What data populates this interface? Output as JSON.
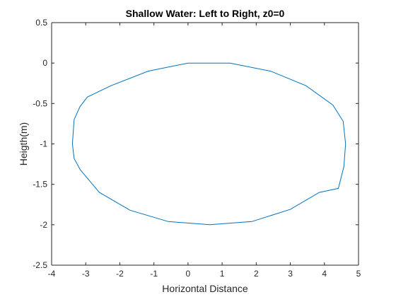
{
  "chart_data": {
    "type": "line",
    "title": "Shallow Water: Left to Right, z0=0",
    "xlabel": "Horizontal Distance",
    "ylabel": "Heigth(m)",
    "xlim": [
      -4,
      5
    ],
    "ylim": [
      -2.5,
      0.5
    ],
    "xticks": [
      -4,
      -3,
      -2,
      -1,
      0,
      1,
      2,
      3,
      4,
      5
    ],
    "xtick_labels": [
      "-4",
      "-3",
      "-2",
      "-1",
      "0",
      "1",
      "2",
      "3",
      "4",
      "5"
    ],
    "yticks": [
      -2.5,
      -2,
      -1.5,
      -1,
      -0.5,
      0,
      0.5
    ],
    "ytick_labels": [
      "-2.5",
      "-2",
      "-1.5",
      "-1",
      "-0.5",
      "0",
      "0.5"
    ],
    "grid": false,
    "series": [
      {
        "color": "#0072BD",
        "x": [
          0.0,
          1.23,
          2.42,
          3.46,
          4.25,
          4.55,
          4.62,
          4.57,
          4.41,
          3.85,
          3.0,
          1.87,
          0.64,
          -0.58,
          -1.7,
          -2.6,
          -3.16,
          -3.34,
          -3.39,
          -3.34,
          -3.17,
          -2.95,
          -2.26,
          -1.17,
          0.0
        ],
        "y": [
          0.0,
          0.0,
          -0.1,
          -0.28,
          -0.52,
          -0.72,
          -1.0,
          -1.28,
          -1.55,
          -1.6,
          -1.81,
          -1.96,
          -2.0,
          -1.96,
          -1.82,
          -1.6,
          -1.32,
          -1.18,
          -1.0,
          -0.7,
          -0.54,
          -0.42,
          -0.28,
          -0.1,
          0.0
        ]
      }
    ]
  }
}
